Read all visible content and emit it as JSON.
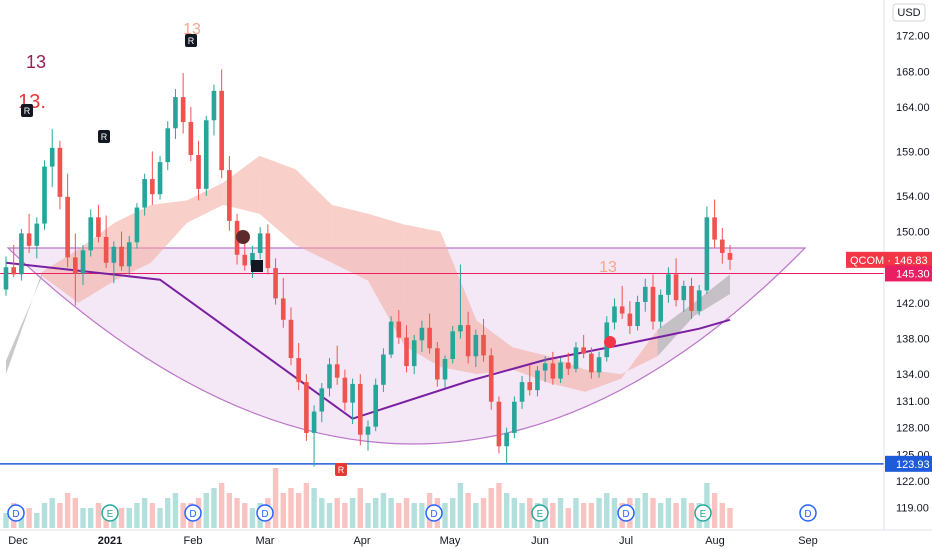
{
  "chart_data": {
    "type": "candlestick",
    "symbol": "QCOM",
    "currency": "USD",
    "price_scale": "USD",
    "y_range": [
      116.5,
      176
    ],
    "y_ticks": [
      172,
      168,
      164,
      159,
      154,
      150,
      146,
      142,
      138,
      134,
      131,
      128,
      125,
      122,
      119
    ],
    "x_labels": [
      "Dec",
      "2021",
      "Feb",
      "Mar",
      "Apr",
      "May",
      "Jun",
      "Jul",
      "Aug",
      "Sep"
    ],
    "last_price_label": "QCOM · 146.83",
    "last_price": 146.83,
    "level_labels": [
      145.3,
      123.93
    ],
    "candles": [
      [
        143.5,
        147.2,
        142.8,
        146.0
      ],
      [
        146.0,
        148.5,
        144.9,
        145.2
      ],
      [
        145.2,
        150.3,
        144.5,
        149.8
      ],
      [
        149.8,
        152.0,
        147.6,
        148.4
      ],
      [
        148.4,
        151.6,
        147.0,
        150.9
      ],
      [
        150.9,
        158.0,
        150.2,
        157.3
      ],
      [
        157.3,
        161.5,
        155.0,
        159.4
      ],
      [
        159.4,
        160.2,
        152.5,
        153.9
      ],
      [
        153.9,
        156.5,
        146.0,
        147.1
      ],
      [
        147.1,
        149.8,
        141.7,
        145.3
      ],
      [
        145.3,
        148.5,
        144.0,
        147.9
      ],
      [
        147.9,
        152.5,
        147.2,
        151.6
      ],
      [
        151.6,
        153.0,
        148.8,
        149.4
      ],
      [
        149.4,
        151.8,
        145.9,
        146.5
      ],
      [
        146.5,
        148.9,
        144.2,
        148.3
      ],
      [
        148.3,
        150.0,
        145.6,
        146.1
      ],
      [
        146.1,
        149.5,
        145.0,
        148.8
      ],
      [
        148.8,
        153.2,
        148.1,
        152.7
      ],
      [
        152.7,
        156.5,
        151.8,
        155.9
      ],
      [
        155.9,
        159.0,
        153.0,
        154.2
      ],
      [
        154.2,
        158.5,
        153.6,
        157.8
      ],
      [
        157.8,
        162.4,
        156.9,
        161.6
      ],
      [
        161.6,
        166.0,
        160.4,
        165.1
      ],
      [
        165.1,
        167.8,
        161.0,
        162.3
      ],
      [
        162.3,
        164.0,
        157.9,
        158.6
      ],
      [
        158.6,
        160.2,
        153.5,
        154.8
      ],
      [
        154.8,
        163.0,
        154.0,
        162.5
      ],
      [
        162.5,
        166.5,
        160.8,
        165.8
      ],
      [
        165.8,
        168.2,
        156.0,
        156.9
      ],
      [
        156.9,
        158.5,
        150.1,
        151.2
      ],
      [
        151.2,
        152.0,
        146.3,
        147.4
      ],
      [
        147.4,
        149.5,
        145.6,
        146.2
      ],
      [
        146.2,
        148.4,
        144.8,
        147.6
      ],
      [
        147.6,
        150.5,
        146.9,
        149.8
      ],
      [
        149.8,
        150.8,
        145.2,
        145.9
      ],
      [
        145.9,
        147.0,
        141.8,
        142.5
      ],
      [
        142.5,
        144.8,
        139.2,
        140.1
      ],
      [
        140.1,
        141.5,
        135.0,
        135.8
      ],
      [
        135.8,
        137.5,
        132.2,
        133.1
      ],
      [
        133.1,
        134.0,
        126.5,
        127.4
      ],
      [
        127.4,
        130.5,
        123.6,
        129.8
      ],
      [
        129.8,
        133.0,
        128.6,
        132.4
      ],
      [
        132.4,
        135.8,
        131.5,
        135.1
      ],
      [
        135.1,
        137.2,
        132.8,
        133.6
      ],
      [
        133.6,
        134.5,
        129.9,
        130.8
      ],
      [
        130.8,
        133.5,
        128.4,
        132.9
      ],
      [
        132.9,
        134.0,
        126.0,
        127.2
      ],
      [
        127.2,
        128.8,
        125.4,
        128.1
      ],
      [
        128.1,
        133.5,
        127.6,
        132.8
      ],
      [
        132.8,
        136.9,
        132.0,
        136.2
      ],
      [
        136.2,
        140.5,
        135.8,
        139.9
      ],
      [
        139.9,
        141.2,
        137.4,
        138.1
      ],
      [
        138.1,
        139.5,
        134.2,
        134.9
      ],
      [
        134.9,
        138.4,
        134.0,
        137.8
      ],
      [
        137.8,
        140.0,
        136.5,
        139.2
      ],
      [
        139.2,
        140.8,
        136.3,
        136.9
      ],
      [
        136.9,
        137.6,
        132.6,
        133.4
      ],
      [
        133.4,
        136.1,
        132.5,
        135.7
      ],
      [
        135.7,
        139.4,
        135.2,
        138.8
      ],
      [
        138.8,
        146.3,
        138.0,
        139.5
      ],
      [
        139.5,
        141.0,
        135.2,
        136.0
      ],
      [
        136.0,
        139.0,
        134.8,
        138.4
      ],
      [
        138.4,
        140.2,
        135.4,
        136.1
      ],
      [
        136.1,
        136.9,
        130.0,
        130.9
      ],
      [
        130.9,
        131.5,
        125.1,
        125.9
      ],
      [
        125.9,
        128.0,
        123.9,
        127.4
      ],
      [
        127.4,
        131.5,
        126.8,
        130.9
      ],
      [
        130.9,
        133.8,
        130.1,
        133.1
      ],
      [
        133.1,
        135.0,
        131.6,
        132.2
      ],
      [
        132.2,
        134.9,
        131.5,
        134.4
      ],
      [
        134.4,
        136.0,
        133.1,
        135.2
      ],
      [
        135.2,
        136.5,
        132.8,
        133.5
      ],
      [
        133.5,
        135.8,
        133.0,
        135.3
      ],
      [
        135.3,
        136.4,
        133.9,
        134.6
      ],
      [
        134.6,
        137.6,
        134.2,
        137.0
      ],
      [
        137.0,
        138.4,
        135.8,
        136.3
      ],
      [
        136.3,
        137.0,
        133.5,
        134.2
      ],
      [
        134.2,
        136.5,
        133.6,
        135.9
      ],
      [
        135.9,
        140.5,
        135.4,
        139.8
      ],
      [
        139.8,
        142.5,
        139.0,
        141.6
      ],
      [
        141.6,
        143.9,
        140.2,
        140.8
      ],
      [
        140.8,
        142.2,
        138.5,
        139.4
      ],
      [
        139.4,
        142.8,
        138.9,
        142.1
      ],
      [
        142.1,
        144.7,
        141.0,
        143.8
      ],
      [
        143.8,
        145.2,
        139.0,
        139.9
      ],
      [
        139.9,
        143.5,
        139.2,
        142.9
      ],
      [
        142.9,
        146.0,
        142.0,
        145.2
      ],
      [
        145.2,
        147.0,
        141.6,
        142.3
      ],
      [
        142.3,
        144.5,
        141.0,
        143.9
      ],
      [
        143.9,
        144.8,
        140.2,
        141.1
      ],
      [
        141.1,
        144.0,
        140.6,
        143.4
      ],
      [
        143.4,
        152.8,
        143.0,
        151.6
      ],
      [
        151.6,
        153.6,
        148.2,
        149.1
      ],
      [
        149.1,
        150.4,
        146.4,
        147.6
      ],
      [
        147.6,
        148.5,
        145.7,
        146.83
      ]
    ],
    "volumes": [
      3,
      5,
      4,
      4,
      3,
      5,
      6,
      5,
      7,
      6,
      4,
      4,
      5,
      4,
      3,
      4,
      4,
      5,
      6,
      5,
      4,
      6,
      7,
      5,
      5,
      6,
      7,
      8,
      9,
      7,
      6,
      5,
      4,
      5,
      6,
      12,
      7,
      8,
      7,
      9,
      8,
      6,
      5,
      6,
      5,
      6,
      8,
      5,
      6,
      7,
      6,
      5,
      6,
      5,
      5,
      7,
      6,
      5,
      6,
      9,
      7,
      5,
      6,
      8,
      9,
      7,
      6,
      5,
      6,
      5,
      6,
      5,
      6,
      4,
      6,
      5,
      5,
      6,
      7,
      6,
      5,
      6,
      6,
      7,
      6,
      5,
      6,
      5,
      6,
      5,
      5,
      9,
      7,
      5,
      4
    ],
    "moving_average": [
      [
        0,
        146.5
      ],
      [
        20,
        144.6
      ],
      [
        45,
        129.0
      ],
      [
        60,
        133.2
      ],
      [
        70,
        135.6
      ],
      [
        80,
        137.3
      ],
      [
        90,
        139.1
      ],
      [
        94,
        140.1
      ]
    ],
    "cloud": [
      [
        0,
        134,
        135.5
      ],
      [
        5,
        145.5,
        145.0
      ],
      [
        10,
        148.0,
        142.0
      ],
      [
        15,
        151.0,
        144.5
      ],
      [
        20,
        153.0,
        146.5
      ],
      [
        25,
        153.5,
        151.0
      ],
      [
        30,
        155.5,
        153.0
      ],
      [
        35,
        158.5,
        152.0
      ],
      [
        40,
        157.0,
        148.5
      ],
      [
        45,
        153.0,
        146.5
      ],
      [
        50,
        152.0,
        144.5
      ],
      [
        55,
        150.8,
        137.2
      ],
      [
        60,
        150.0,
        134.8
      ],
      [
        65,
        140.0,
        134.0
      ],
      [
        70,
        137.0,
        134.5
      ],
      [
        75,
        136.0,
        133.0
      ],
      [
        80,
        134.5,
        132.0
      ],
      [
        85,
        134.0,
        133.5
      ],
      [
        90,
        136.0,
        139.0
      ],
      [
        95,
        140.5,
        142.0
      ],
      [
        100,
        143.0,
        145.2
      ]
    ],
    "reference_lines": {
      "upper": 145.3,
      "lower": 123.93
    },
    "texts": [
      "13",
      "13.",
      "13",
      "13",
      "R",
      "R",
      "R"
    ],
    "markers": [
      "D",
      "E",
      "D",
      "D",
      "D",
      "E",
      "D",
      "E",
      "D"
    ]
  },
  "colors": {
    "up": "#26a69a",
    "down": "#ef5350",
    "cloud_fill": "#f4a79c",
    "cloud_dark": "#9e9e9e",
    "ma": "#7b1fa2",
    "arc_fill": "#f3e5f5",
    "upper_line": "#e91e63",
    "lower_line": "#1e5bd8",
    "price_tag": "#f23645"
  }
}
